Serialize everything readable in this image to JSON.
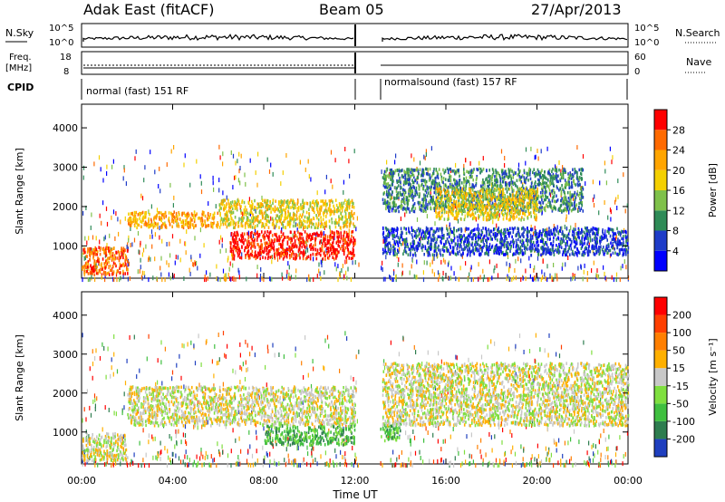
{
  "header": {
    "radar": "Adak East (fitACF)",
    "beam": "Beam 05",
    "date": "27/Apr/2013"
  },
  "noise_panel": {
    "left_label": "N.Sky",
    "right_label": "N.Search",
    "ticks": [
      "10^5",
      "10^0"
    ]
  },
  "freq_panel": {
    "left_label_1": "Freq.",
    "left_label_2": "[MHz]",
    "right_label": "Nave",
    "left_ticks": [
      "18",
      "8"
    ],
    "right_ticks": [
      "60",
      "0"
    ]
  },
  "cpid_panel": {
    "label": "CPID",
    "programs": [
      "normal (fast) 151 RF",
      "normalsound (fast) 157 RF"
    ]
  },
  "chart_data": [
    {
      "type": "heatmap",
      "name": "power",
      "ylabel": "Slant Range [km]",
      "xlabel": "",
      "x_ticks": [
        "00:00",
        "04:00",
        "08:00",
        "12:00",
        "16:00",
        "20:00",
        "00:00"
      ],
      "y_ticks": [
        "1000",
        "2000",
        "3000",
        "4000"
      ],
      "ylim": [
        180,
        4600
      ],
      "xlim_hours": [
        0,
        24
      ],
      "data_gap_hours": [
        12.2,
        13.1
      ],
      "colorbar": {
        "label": "Power [dB]",
        "ticks": [
          "4",
          "8",
          "12",
          "16",
          "20",
          "24",
          "28"
        ],
        "colors": [
          "#0000ff",
          "#1e3cc8",
          "#2e8b57",
          "#7fc14a",
          "#f4d000",
          "#ffa500",
          "#ff6a00",
          "#ff0000"
        ]
      },
      "bands": [
        {
          "t0": 0.0,
          "t1": 2.0,
          "r0": 300,
          "r1": 1000,
          "level": 6
        },
        {
          "t0": 2.0,
          "t1": 6.0,
          "r0": 1500,
          "r1": 1900,
          "level": 5
        },
        {
          "t0": 6.0,
          "t1": 12.0,
          "r0": 1500,
          "r1": 2200,
          "level": 4
        },
        {
          "t0": 6.5,
          "t1": 12.0,
          "r0": 700,
          "r1": 1400,
          "level": 7
        },
        {
          "t0": 13.2,
          "t1": 24.0,
          "r0": 800,
          "r1": 1500,
          "level": 1
        },
        {
          "t0": 13.2,
          "t1": 22.0,
          "r0": 1900,
          "r1": 3000,
          "level": 2
        },
        {
          "t0": 15.5,
          "t1": 20.0,
          "r0": 1700,
          "r1": 2500,
          "level": 4
        }
      ]
    },
    {
      "type": "heatmap",
      "name": "velocity",
      "ylabel": "Slant Range [km]",
      "xlabel": "Time UT",
      "x_ticks": [
        "00:00",
        "04:00",
        "08:00",
        "12:00",
        "16:00",
        "20:00",
        "00:00"
      ],
      "y_ticks": [
        "1000",
        "2000",
        "3000",
        "4000"
      ],
      "ylim": [
        180,
        4600
      ],
      "xlim_hours": [
        0,
        24
      ],
      "data_gap_hours": [
        12.2,
        13.1
      ],
      "colorbar": {
        "label": "Velocity [m s⁻¹]",
        "ticks": [
          "200",
          "100",
          "50",
          "15",
          "-15",
          "-50",
          "-100",
          "-200"
        ],
        "colors": [
          "#1f3fbf",
          "#2e7d4f",
          "#3fbf3f",
          "#7fdf3f",
          "#c8c8c8",
          "#ffb000",
          "#ff7f00",
          "#ff3f00",
          "#ff0000"
        ]
      },
      "bands": [
        {
          "t0": 0.0,
          "t1": 2.0,
          "r0": 300,
          "r1": 1000,
          "level": 4
        },
        {
          "t0": 2.0,
          "t1": 12.0,
          "r0": 1200,
          "r1": 2200,
          "level": 4
        },
        {
          "t0": 8.0,
          "t1": 12.0,
          "r0": 700,
          "r1": 1200,
          "level": 2
        },
        {
          "t0": 13.1,
          "t1": 14.0,
          "r0": 800,
          "r1": 1300,
          "level": 2
        },
        {
          "t0": 13.2,
          "t1": 24.0,
          "r0": 1200,
          "r1": 2800,
          "level": 4
        }
      ]
    }
  ]
}
